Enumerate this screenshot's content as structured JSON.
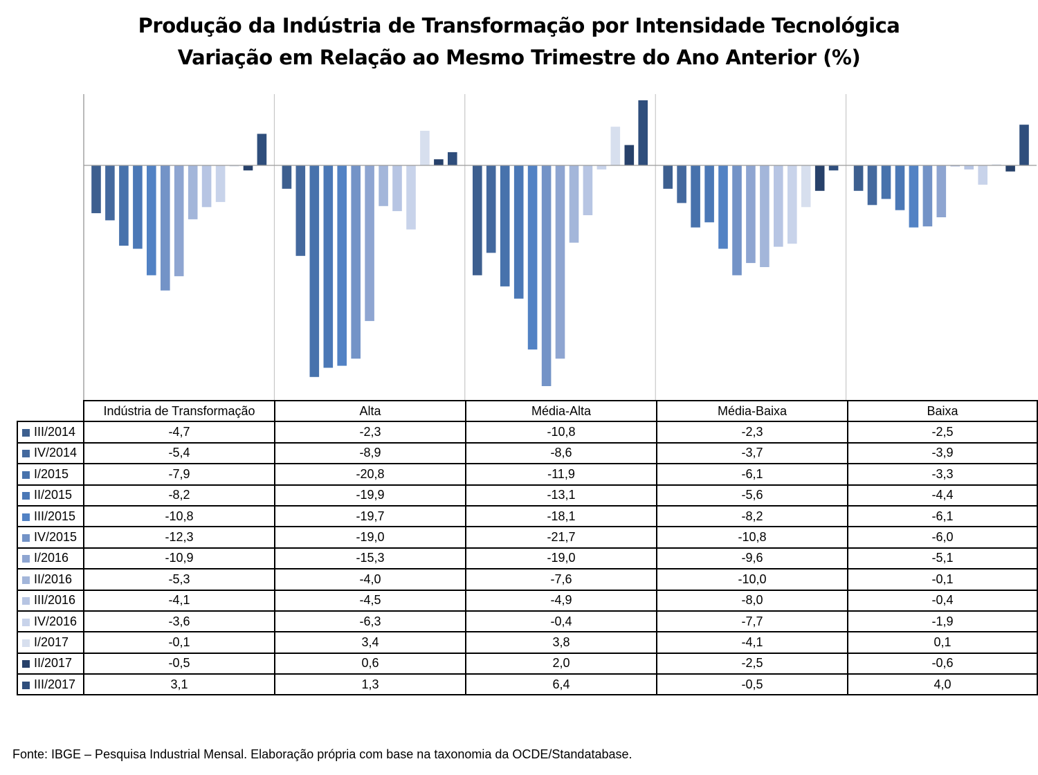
{
  "title": "Produção da Indústria de Transformação por Intensidade Tecnológica",
  "subtitle": "Variação em Relação ao Mesmo Trimestre do Ano Anterior (%)",
  "source": "Fonte: IBGE – Pesquisa Industrial Mensal. Elaboração própria com base na taxonomia da OCDE/Standatabase.",
  "chart_data": {
    "type": "bar",
    "title": "Produção da Indústria de Transformação por Intensidade Tecnológica",
    "subtitle": "Variação em Relação ao Mesmo Trimestre do Ano Anterior (%)",
    "xlabel": "",
    "ylabel": "",
    "ylim": [
      -22.8,
      6.9
    ],
    "grid": false,
    "legend": "data-table-below",
    "categories": [
      "Indústria de Transformação",
      "Alta",
      "Média-Alta",
      "Média-Baixa",
      "Baixa"
    ],
    "series": [
      {
        "name": "III/2014",
        "color": "#3d5f8f",
        "values": [
          -4.7,
          -2.3,
          -10.8,
          -2.3,
          -2.5
        ]
      },
      {
        "name": "IV/2014",
        "color": "#44699e",
        "values": [
          -5.4,
          -8.9,
          -8.6,
          -3.7,
          -3.9
        ]
      },
      {
        "name": "I/2015",
        "color": "#4772ac",
        "values": [
          -7.9,
          -20.8,
          -11.9,
          -6.1,
          -3.3
        ]
      },
      {
        "name": "II/2015",
        "color": "#4b78b6",
        "values": [
          -8.2,
          -19.9,
          -13.1,
          -5.6,
          -4.4
        ]
      },
      {
        "name": "III/2015",
        "color": "#5282c4",
        "values": [
          -10.8,
          -19.7,
          -18.1,
          -8.2,
          -6.1
        ]
      },
      {
        "name": "IV/2015",
        "color": "#7393c7",
        "values": [
          -12.3,
          -19.0,
          -21.7,
          -10.8,
          -6.0
        ]
      },
      {
        "name": "I/2016",
        "color": "#8ea5d1",
        "values": [
          -10.9,
          -15.3,
          -19.0,
          -9.6,
          -5.1
        ]
      },
      {
        "name": "II/2016",
        "color": "#a3b6da",
        "values": [
          -5.3,
          -4.0,
          -7.6,
          -10.0,
          -0.1
        ]
      },
      {
        "name": "III/2016",
        "color": "#b7c5e3",
        "values": [
          -4.1,
          -4.5,
          -4.9,
          -8.0,
          -0.4
        ]
      },
      {
        "name": "IV/2016",
        "color": "#c8d3ea",
        "values": [
          -3.6,
          -6.3,
          -0.4,
          -7.7,
          -1.9
        ]
      },
      {
        "name": "I/2017",
        "color": "#d7dfee",
        "values": [
          -0.1,
          3.4,
          3.8,
          -4.1,
          0.1
        ]
      },
      {
        "name": "II/2017",
        "color": "#27416a",
        "values": [
          -0.5,
          0.6,
          2.0,
          -2.5,
          -0.6
        ]
      },
      {
        "name": "III/2017",
        "color": "#2f4e7c",
        "values": [
          3.1,
          1.3,
          6.4,
          -0.5,
          4.0
        ]
      }
    ],
    "table": {
      "rows": [
        {
          "label": "III/2014",
          "values": [
            "-4,7",
            "-2,3",
            "-10,8",
            "-2,3",
            "-2,5"
          ]
        },
        {
          "label": "IV/2014",
          "values": [
            "-5,4",
            "-8,9",
            "-8,6",
            "-3,7",
            "-3,9"
          ]
        },
        {
          "label": "I/2015",
          "values": [
            "-7,9",
            "-20,8",
            "-11,9",
            "-6,1",
            "-3,3"
          ]
        },
        {
          "label": "II/2015",
          "values": [
            "-8,2",
            "-19,9",
            "-13,1",
            "-5,6",
            "-4,4"
          ]
        },
        {
          "label": "III/2015",
          "values": [
            "-10,8",
            "-19,7",
            "-18,1",
            "-8,2",
            "-6,1"
          ]
        },
        {
          "label": "IV/2015",
          "values": [
            "-12,3",
            "-19,0",
            "-21,7",
            "-10,8",
            "-6,0"
          ]
        },
        {
          "label": "I/2016",
          "values": [
            "-10,9",
            "-15,3",
            "-19,0",
            "-9,6",
            "-5,1"
          ]
        },
        {
          "label": "II/2016",
          "values": [
            "-5,3",
            "-4,0",
            "-7,6",
            "-10,0",
            "-0,1"
          ]
        },
        {
          "label": "III/2016",
          "values": [
            "-4,1",
            "-4,5",
            "-4,9",
            "-8,0",
            "-0,4"
          ]
        },
        {
          "label": "IV/2016",
          "values": [
            "-3,6",
            "-6,3",
            "-0,4",
            "-7,7",
            "-1,9"
          ]
        },
        {
          "label": "I/2017",
          "values": [
            "-0,1",
            "3,4",
            "3,8",
            "-4,1",
            "0,1"
          ]
        },
        {
          "label": "II/2017",
          "values": [
            "-0,5",
            "0,6",
            "2,0",
            "-2,5",
            "-0,6"
          ]
        },
        {
          "label": "III/2017",
          "values": [
            "3,1",
            "1,3",
            "6,4",
            "-0,5",
            "4,0"
          ]
        }
      ]
    }
  }
}
